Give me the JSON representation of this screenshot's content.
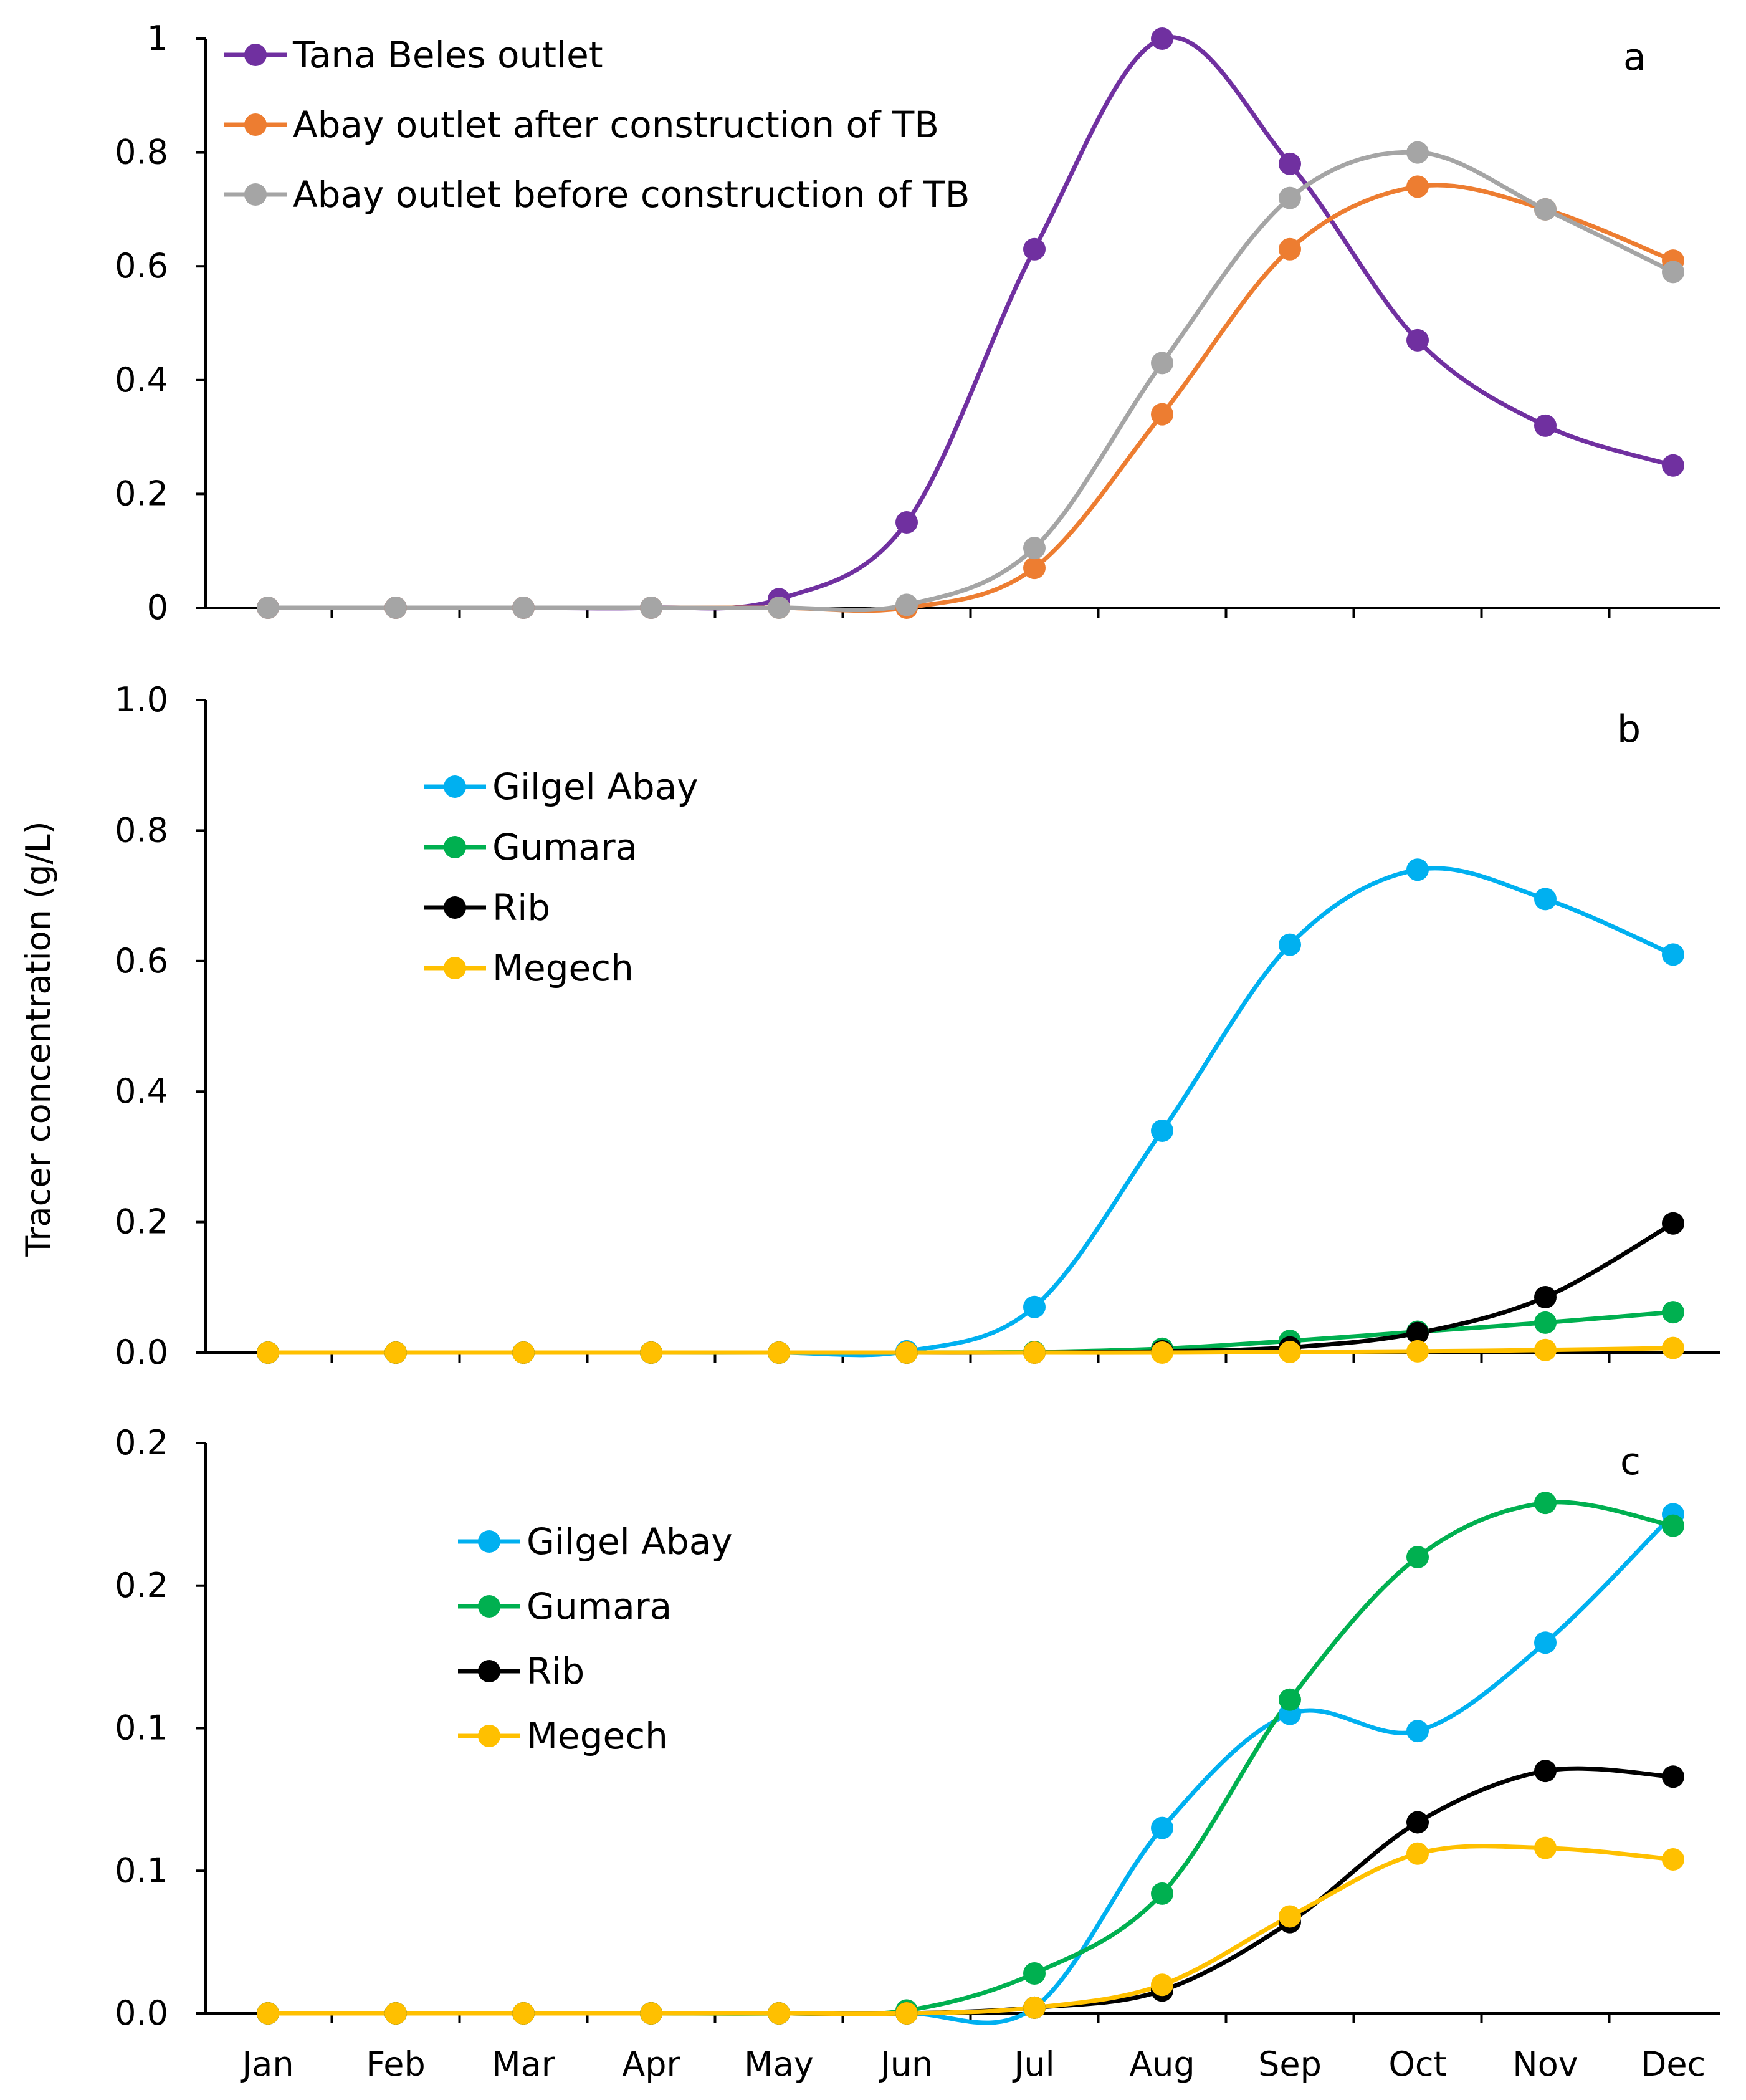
{
  "chart_data": [
    {
      "type": "line",
      "panel_label": "a",
      "categories": [
        "Jan",
        "Feb",
        "Mar",
        "Apr",
        "May",
        "Jun",
        "Jul",
        "Aug",
        "Sep",
        "Oct",
        "Nov",
        "Dec"
      ],
      "ylim": [
        0,
        1
      ],
      "yticks": [
        0,
        0.2,
        0.4,
        0.6,
        0.8,
        1
      ],
      "ytick_labels": [
        "0",
        "0.2",
        "0.4",
        "0.6",
        "0.8",
        "1"
      ],
      "legend_position": "top-left",
      "series": [
        {
          "name": "Tana Beles outlet",
          "color": "#7030a0",
          "values": [
            0,
            0,
            0,
            0,
            0.015,
            0.15,
            0.63,
            1.0,
            0.78,
            0.47,
            0.32,
            0.25
          ]
        },
        {
          "name": "Abay outlet after construction of TB",
          "color": "#ed7d31",
          "values": [
            0,
            0,
            0,
            0,
            0,
            0,
            0.07,
            0.34,
            0.63,
            0.74,
            0.7,
            0.61
          ]
        },
        {
          "name": "Abay outlet before construction of TB",
          "color": "#a5a5a5",
          "values": [
            0,
            0,
            0,
            0,
            0,
            0.005,
            0.105,
            0.43,
            0.72,
            0.8,
            0.7,
            0.59
          ]
        }
      ]
    },
    {
      "type": "line",
      "panel_label": "b",
      "ylabel": "Tracer concentration (g/L)",
      "categories": [
        "Jan",
        "Feb",
        "Mar",
        "Apr",
        "May",
        "Jun",
        "Jul",
        "Aug",
        "Sep",
        "Oct",
        "Nov",
        "Dec"
      ],
      "ylim": [
        0,
        1.0
      ],
      "yticks": [
        0,
        0.2,
        0.4,
        0.6,
        0.8,
        1.0
      ],
      "ytick_labels": [
        "0.0",
        "0.2",
        "0.4",
        "0.6",
        "0.8",
        "1.0"
      ],
      "legend_position": "top-left",
      "series": [
        {
          "name": "Gilgel Abay",
          "color": "#00b0f0",
          "values": [
            0,
            0,
            0,
            0,
            0,
            0.002,
            0.07,
            0.34,
            0.625,
            0.74,
            0.695,
            0.61
          ]
        },
        {
          "name": "Gumara",
          "color": "#00b050",
          "values": [
            0,
            0,
            0,
            0,
            0,
            0,
            0.001,
            0.006,
            0.018,
            0.032,
            0.046,
            0.062
          ]
        },
        {
          "name": "Rib",
          "color": "#000000",
          "values": [
            0,
            0,
            0,
            0,
            0,
            0,
            0,
            0.002,
            0.008,
            0.03,
            0.085,
            0.198
          ]
        },
        {
          "name": "Megech",
          "color": "#ffc000",
          "values": [
            0,
            0,
            0,
            0,
            0,
            0,
            0,
            0,
            0.001,
            0.002,
            0.004,
            0.007
          ]
        }
      ]
    },
    {
      "type": "line",
      "panel_label": "c",
      "categories": [
        "Jan",
        "Feb",
        "Mar",
        "Apr",
        "May",
        "Jun",
        "Jul",
        "Aug",
        "Sep",
        "Oct",
        "Nov",
        "Dec"
      ],
      "ylim": [
        0,
        0.2
      ],
      "yticks": [
        0,
        0.05,
        0.1,
        0.15,
        0.2
      ],
      "ytick_labels": [
        "0.0",
        "0.1",
        "0.1",
        "0.2",
        "0.2"
      ],
      "legend_position": "top-left",
      "series": [
        {
          "name": "Gilgel Abay",
          "color": "#00b0f0",
          "values": [
            0,
            0,
            0,
            0,
            0,
            0,
            0.002,
            0.065,
            0.105,
            0.099,
            0.13,
            0.175
          ]
        },
        {
          "name": "Gumara",
          "color": "#00b050",
          "values": [
            0,
            0,
            0,
            0,
            0,
            0.001,
            0.014,
            0.042,
            0.11,
            0.16,
            0.179,
            0.171
          ]
        },
        {
          "name": "Rib",
          "color": "#000000",
          "values": [
            0,
            0,
            0,
            0,
            0,
            0,
            0.002,
            0.008,
            0.032,
            0.067,
            0.085,
            0.083
          ]
        },
        {
          "name": "Megech",
          "color": "#ffc000",
          "values": [
            0,
            0,
            0,
            0,
            0,
            0,
            0.002,
            0.01,
            0.034,
            0.056,
            0.058,
            0.054
          ]
        }
      ]
    }
  ]
}
